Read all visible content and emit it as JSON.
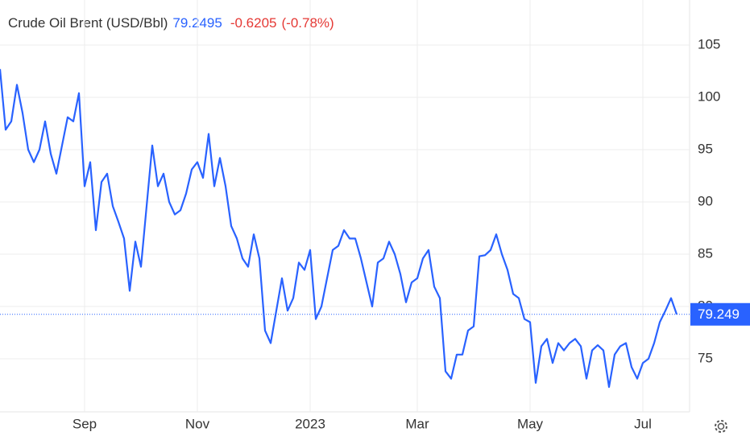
{
  "chart_data": {
    "type": "line",
    "title": "Crude Oil Brent (USD/Bbl)",
    "last_price": "79.2495",
    "change": "-0.6205",
    "change_percent": "(-0.78%)",
    "price_tag": "79.249",
    "categories": [
      null,
      null,
      null,
      null,
      null,
      null,
      null,
      null,
      null,
      null,
      null,
      null,
      null,
      null,
      null,
      "Sep",
      null,
      null,
      null,
      null,
      null,
      null,
      null,
      null,
      null,
      null,
      null,
      null,
      null,
      null,
      null,
      null,
      null,
      null,
      null,
      "Nov",
      null,
      null,
      null,
      null,
      null,
      null,
      null,
      null,
      null,
      null,
      null,
      null,
      null,
      null,
      null,
      null,
      null,
      null,
      null,
      "2023",
      null,
      null,
      null,
      null,
      null,
      null,
      null,
      null,
      null,
      null,
      null,
      null,
      null,
      null,
      null,
      null,
      null,
      null,
      "Mar",
      null,
      null,
      null,
      null,
      null,
      null,
      null,
      null,
      null,
      null,
      null,
      null,
      null,
      null,
      null,
      null,
      null,
      null,
      null,
      "May",
      null,
      null,
      null,
      null,
      null,
      null,
      null,
      null,
      null,
      null,
      null,
      null,
      null,
      null,
      null,
      null,
      null,
      null,
      null,
      "Jul",
      null,
      null,
      null,
      null,
      null,
      null
    ],
    "series": [
      {
        "name": "Crude Oil Brent",
        "color": "#2962ff",
        "values": [
          102.7,
          96.9,
          97.7,
          101.2,
          98.5,
          95,
          93.8,
          95,
          97.7,
          94.6,
          92.7,
          95.4,
          98.1,
          97.7,
          100.4,
          91.5,
          93.8,
          87.3,
          91.9,
          92.7,
          89.6,
          88.1,
          86.5,
          81.5,
          86.2,
          83.8,
          89.6,
          95.4,
          91.5,
          92.7,
          90,
          88.8,
          89.2,
          90.8,
          93.1,
          93.8,
          92.3,
          96.5,
          91.5,
          94.2,
          91.5,
          87.7,
          86.5,
          84.6,
          83.8,
          86.9,
          84.6,
          77.7,
          76.5,
          79.6,
          82.7,
          79.6,
          80.8,
          84.2,
          83.5,
          85.4,
          78.8,
          80,
          82.7,
          85.4,
          85.8,
          87.3,
          86.5,
          86.5,
          84.6,
          82.3,
          80,
          84.2,
          84.6,
          86.2,
          85,
          83.1,
          80.4,
          82.3,
          82.7,
          84.6,
          85.4,
          81.9,
          80.8,
          73.8,
          73.1,
          75.4,
          75.4,
          77.7,
          78.1,
          84.8,
          84.9,
          85.4,
          86.9,
          85,
          83.5,
          81.2,
          80.8,
          78.8,
          78.5,
          72.7,
          76.2,
          76.9,
          74.6,
          76.5,
          75.8,
          76.5,
          76.9,
          76.2,
          73.1,
          75.8,
          76.3,
          75.8,
          72.3,
          75.4,
          76.2,
          76.5,
          74.2,
          73.1,
          74.6,
          75,
          76.5,
          78.5,
          79.6,
          80.8,
          79.2495
        ]
      }
    ],
    "ylim": [
      70,
      109
    ],
    "yticks": [
      75,
      80,
      85,
      90,
      95,
      100,
      105
    ],
    "grid": true
  }
}
